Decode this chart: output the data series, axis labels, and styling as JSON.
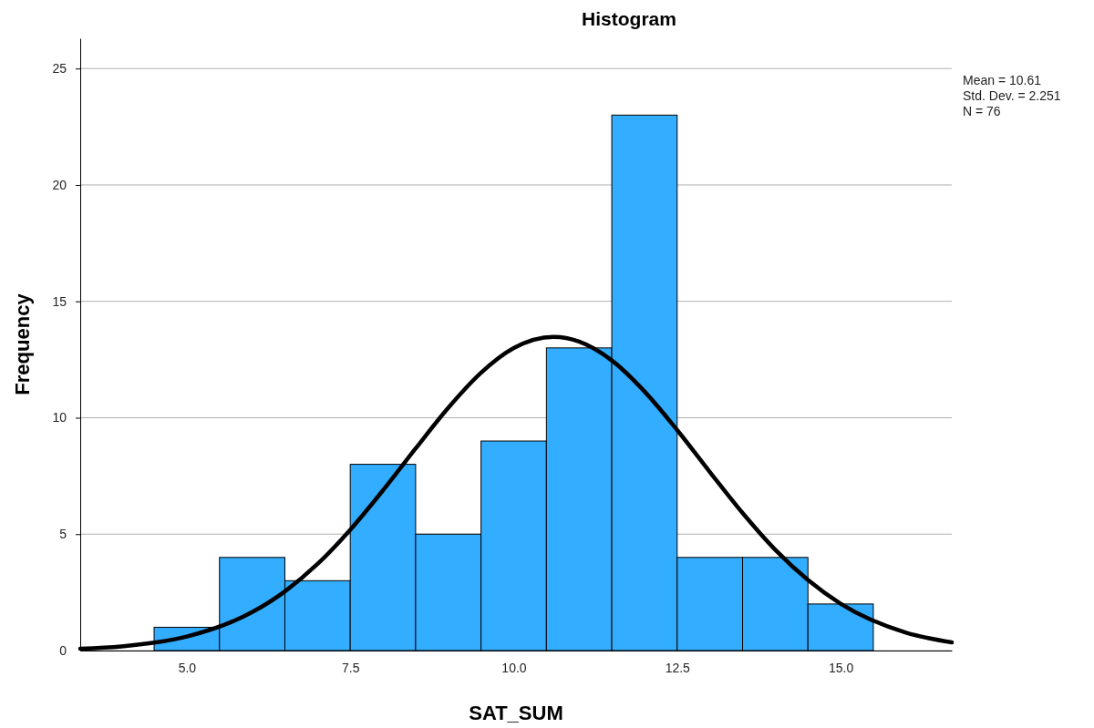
{
  "chart_data": {
    "type": "histogram",
    "title": "Histogram",
    "xlabel": "SAT_SUM",
    "ylabel": "Frequency",
    "bins": [
      4.5,
      5.5,
      6.5,
      7.5,
      8.5,
      9.5,
      10.5,
      11.5,
      12.5,
      13.5,
      14.5,
      15.5
    ],
    "values": [
      1,
      4,
      3,
      8,
      5,
      9,
      13,
      23,
      4,
      4,
      2
    ],
    "color": "#33adff",
    "series": [
      {
        "type": "line",
        "color": "#000000",
        "x": [
          3.37,
          4,
          5,
          6,
          6.5,
          7,
          7.5,
          8,
          8.5,
          9,
          9.5,
          10,
          10.61,
          11,
          11.5,
          12,
          12.5,
          13,
          13.5,
          14,
          14.5,
          15,
          16,
          16.7
        ],
        "values": [
          0.08,
          0.18,
          0.6,
          1.65,
          2.54,
          3.72,
          5.19,
          6.88,
          8.68,
          10.43,
          11.93,
          12.99,
          13.47,
          13.27,
          12.46,
          11.13,
          9.47,
          7.67,
          5.91,
          4.33,
          3.03,
          2.01,
          0.77,
          0.35
        ]
      }
    ],
    "xlim": [
      3.37,
      16.7
    ],
    "xticks": [
      {
        "value": 5,
        "label": "5.0"
      },
      {
        "value": 7.5,
        "label": "7.5"
      },
      {
        "value": 10,
        "label": "10.0"
      },
      {
        "value": 12.5,
        "label": "12.5"
      },
      {
        "value": 15,
        "label": "15.0"
      }
    ],
    "ylim": [
      0,
      26.3
    ],
    "yticks": [
      0,
      5,
      10,
      15,
      20,
      25
    ],
    "grid": "y",
    "legend": false,
    "marker": "none",
    "annotations": [
      "Mean = 10.61",
      "Std. Dev. = 2.251",
      "N = 76"
    ]
  }
}
